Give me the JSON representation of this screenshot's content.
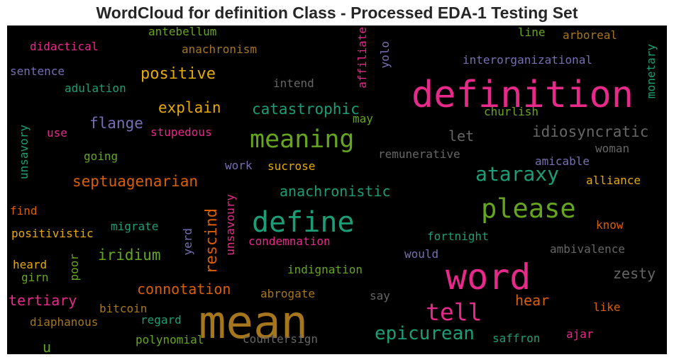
{
  "chart_data": {
    "type": "wordcloud",
    "title": "WordCloud for definition Class - Processed EDA-1 Testing Set",
    "colormap": "Dark2",
    "background": "#000000",
    "words": [
      {
        "text": "definition",
        "color": "#e7298a"
      },
      {
        "text": "mean",
        "color": "#a6761d"
      },
      {
        "text": "word",
        "color": "#e7298a"
      },
      {
        "text": "define",
        "color": "#1b9e77"
      },
      {
        "text": "please",
        "color": "#66a61e"
      },
      {
        "text": "meaning",
        "color": "#66a61e"
      },
      {
        "text": "tell",
        "color": "#e7298a"
      },
      {
        "text": "ataraxy",
        "color": "#1b9e77"
      },
      {
        "text": "epicurean",
        "color": "#1b9e77"
      },
      {
        "text": "rescind",
        "color": "#d95f02"
      },
      {
        "text": "positive",
        "color": "#e6ab02"
      },
      {
        "text": "catastrophic",
        "color": "#1b9e77"
      },
      {
        "text": "idiosyncratic",
        "color": "#666666"
      },
      {
        "text": "explain",
        "color": "#e6ab02"
      },
      {
        "text": "septuagenarian",
        "color": "#d95f02"
      },
      {
        "text": "anachronistic",
        "color": "#1b9e77"
      },
      {
        "text": "connotation",
        "color": "#d95f02"
      },
      {
        "text": "flange",
        "color": "#7570b3"
      },
      {
        "text": "iridium",
        "color": "#66a61e"
      },
      {
        "text": "tertiary",
        "color": "#e7298a"
      },
      {
        "text": "zesty",
        "color": "#666666"
      },
      {
        "text": "hear",
        "color": "#d95f02"
      },
      {
        "text": "let",
        "color": "#666666"
      },
      {
        "text": "monetary",
        "color": "#1b9e77"
      },
      {
        "text": "affiliate",
        "color": "#e7298a"
      },
      {
        "text": "unsavoury",
        "color": "#e7298a"
      },
      {
        "text": "interorganizational",
        "color": "#7570b3"
      },
      {
        "text": "churlish",
        "color": "#66a61e"
      },
      {
        "text": "remunerative",
        "color": "#666666"
      },
      {
        "text": "woman",
        "color": "#666666"
      },
      {
        "text": "amicable",
        "color": "#7570b3"
      },
      {
        "text": "alliance",
        "color": "#e6ab02"
      },
      {
        "text": "know",
        "color": "#d95f02"
      },
      {
        "text": "ambivalence",
        "color": "#666666"
      },
      {
        "text": "fortnight",
        "color": "#1b9e77"
      },
      {
        "text": "would",
        "color": "#7570b3"
      },
      {
        "text": "indignation",
        "color": "#66a61e"
      },
      {
        "text": "condemnation",
        "color": "#e7298a"
      },
      {
        "text": "abrogate",
        "color": "#a6761d"
      },
      {
        "text": "say",
        "color": "#666666"
      },
      {
        "text": "countersign",
        "color": "#666666"
      },
      {
        "text": "saffron",
        "color": "#1b9e77"
      },
      {
        "text": "ajar",
        "color": "#e7298a"
      },
      {
        "text": "like",
        "color": "#d95f02"
      },
      {
        "text": "polynomial",
        "color": "#66a61e"
      },
      {
        "text": "regard",
        "color": "#1b9e77"
      },
      {
        "text": "bitcoin",
        "color": "#a6761d"
      },
      {
        "text": "diaphanous",
        "color": "#a6761d"
      },
      {
        "text": "u",
        "color": "#66a61e"
      },
      {
        "text": "heard",
        "color": "#e6ab02"
      },
      {
        "text": "girn",
        "color": "#66a61e"
      },
      {
        "text": "poor",
        "color": "#66a61e"
      },
      {
        "text": "yerd",
        "color": "#7570b3"
      },
      {
        "text": "migrate",
        "color": "#1b9e77"
      },
      {
        "text": "positivistic",
        "color": "#e6ab02"
      },
      {
        "text": "find",
        "color": "#d95f02"
      },
      {
        "text": "unsavory",
        "color": "#1b9e77"
      },
      {
        "text": "use",
        "color": "#e7298a"
      },
      {
        "text": "going",
        "color": "#66a61e"
      },
      {
        "text": "stupedous",
        "color": "#e7298a"
      },
      {
        "text": "work",
        "color": "#7570b3"
      },
      {
        "text": "sucrose",
        "color": "#e6ab02"
      },
      {
        "text": "may",
        "color": "#66a61e"
      },
      {
        "text": "intend",
        "color": "#666666"
      },
      {
        "text": "yolo",
        "color": "#7570b3"
      },
      {
        "text": "line",
        "color": "#66a61e"
      },
      {
        "text": "arboreal",
        "color": "#a6761d"
      },
      {
        "text": "antebellum",
        "color": "#66a61e"
      },
      {
        "text": "anachronism",
        "color": "#a6761d"
      },
      {
        "text": "didactical",
        "color": "#e7298a"
      },
      {
        "text": "sentence",
        "color": "#7570b3"
      },
      {
        "text": "adulation",
        "color": "#1b9e77"
      }
    ]
  }
}
